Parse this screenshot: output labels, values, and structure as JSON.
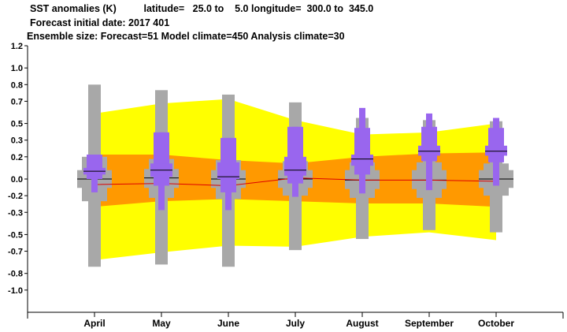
{
  "header": {
    "line1": "SST anomalies (K)          latitude=   25.0 to    5.0 longitude=  300.0 to  345.0",
    "line2": "Forecast initial date: 2017 401",
    "line3": "Ensemble size: Forecast=51 Model climate=450 Analysis climate=30"
  },
  "colors": {
    "outer_band": "#ffff00",
    "inner_band": "#ff9900",
    "climate_box": "#a8a8a8",
    "forecast_box": "#9966ee",
    "mean_line": "#dd0000"
  },
  "chart_data": {
    "type": "box",
    "title": "SST anomalies (K)",
    "ylim": [
      -1.2,
      1.2
    ],
    "yticks": [
      "1.2",
      "1.0",
      "0.8",
      "0.7",
      "0.5",
      "0.3",
      "0.2",
      "0.0",
      "-0.2",
      "-0.3",
      "-0.5",
      "-0.7",
      "-0.8",
      "-1.0"
    ],
    "ytick_values": [
      1.2,
      1.0,
      0.85,
      0.7,
      0.5,
      0.35,
      0.2,
      0.0,
      -0.15,
      -0.3,
      -0.5,
      -0.65,
      -0.85,
      -1.0
    ],
    "categories": [
      "April",
      "May",
      "June",
      "July",
      "August",
      "September",
      "October"
    ],
    "band_outer_upper": [
      0.59,
      0.68,
      0.72,
      0.53,
      0.4,
      0.42,
      0.5
    ],
    "band_outer_lower": [
      -0.73,
      -0.66,
      -0.6,
      -0.61,
      -0.52,
      -0.48,
      -0.55
    ],
    "band_inner_upper": [
      0.22,
      0.22,
      0.17,
      0.14,
      0.2,
      0.23,
      0.24
    ],
    "band_inner_lower": [
      -0.25,
      -0.2,
      -0.18,
      -0.2,
      -0.22,
      -0.22,
      -0.25
    ],
    "mean_line": [
      -0.05,
      -0.04,
      -0.06,
      0.01,
      -0.01,
      -0.01,
      -0.02
    ],
    "climate": [
      {
        "min": -0.79,
        "q10": -0.2,
        "q25": -0.08,
        "median": 0.0,
        "q75": 0.08,
        "q90": 0.2,
        "max": 0.85
      },
      {
        "min": -0.77,
        "q10": -0.17,
        "q25": -0.08,
        "median": 0.01,
        "q75": 0.09,
        "q90": 0.18,
        "max": 0.8
      },
      {
        "min": -0.79,
        "q10": -0.18,
        "q25": -0.08,
        "median": 0.0,
        "q75": 0.08,
        "q90": 0.17,
        "max": 0.76
      },
      {
        "min": -0.64,
        "q10": -0.15,
        "q25": -0.08,
        "median": 0.0,
        "q75": 0.08,
        "q90": 0.16,
        "max": 0.69
      },
      {
        "min": -0.54,
        "q10": -0.17,
        "q25": -0.09,
        "median": -0.01,
        "q75": 0.08,
        "q90": 0.15,
        "max": 0.55
      },
      {
        "min": -0.46,
        "q10": -0.17,
        "q25": -0.09,
        "median": -0.01,
        "q75": 0.08,
        "q90": 0.15,
        "max": 0.53
      },
      {
        "min": -0.48,
        "q10": -0.15,
        "q25": -0.08,
        "median": 0.0,
        "q75": 0.08,
        "q90": 0.14,
        "max": 0.52
      }
    ],
    "forecast": [
      {
        "min": -0.12,
        "q10": 0.0,
        "q25": 0.04,
        "median": 0.07,
        "q75": 0.1,
        "q90": 0.22,
        "max": 0.22
      },
      {
        "min": -0.28,
        "q10": -0.06,
        "q25": 0.02,
        "median": 0.08,
        "q75": 0.14,
        "q90": 0.42,
        "max": 0.42
      },
      {
        "min": -0.28,
        "q10": -0.12,
        "q25": 0.0,
        "median": 0.02,
        "q75": 0.15,
        "q90": 0.37,
        "max": 0.37
      },
      {
        "min": -0.16,
        "q10": -0.04,
        "q25": 0.03,
        "median": 0.08,
        "q75": 0.2,
        "q90": 0.47,
        "max": 0.47
      },
      {
        "min": -0.13,
        "q10": 0.04,
        "q25": 0.12,
        "median": 0.18,
        "q75": 0.22,
        "q90": 0.46,
        "max": 0.64
      },
      {
        "min": -0.1,
        "q10": 0.16,
        "q25": 0.21,
        "median": 0.25,
        "q75": 0.3,
        "q90": 0.47,
        "max": 0.59
      },
      {
        "min": -0.06,
        "q10": 0.15,
        "q25": 0.21,
        "median": 0.25,
        "q75": 0.3,
        "q90": 0.46,
        "max": 0.55
      }
    ]
  }
}
